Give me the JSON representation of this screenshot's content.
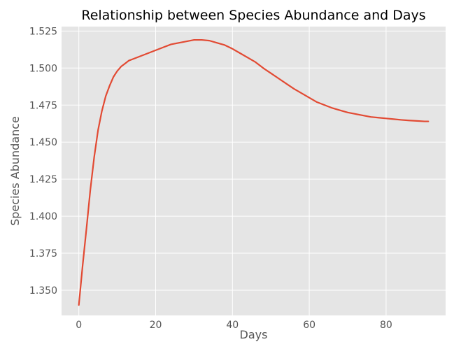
{
  "chart_data": {
    "type": "line",
    "title": "Relationship between Species Abundance and Days",
    "xlabel": "Days",
    "ylabel": "Species Abundance",
    "xlim": [
      -4.5,
      95.5
    ],
    "ylim": [
      1.333,
      1.528
    ],
    "xticks": [
      0,
      20,
      40,
      60,
      80
    ],
    "yticks": [
      1.35,
      1.375,
      1.4,
      1.425,
      1.45,
      1.475,
      1.5,
      1.525
    ],
    "ytick_labels": [
      "1.350",
      "1.375",
      "1.400",
      "1.425",
      "1.450",
      "1.475",
      "1.500",
      "1.525"
    ],
    "grid": true,
    "colors": {
      "line": "#e24a33",
      "plot_background": "#e5e5e5",
      "grid": "#ffffff",
      "text": "#555555",
      "title": "#000000"
    },
    "series": [
      {
        "x": [
          0,
          1,
          2,
          3,
          4,
          5,
          6,
          7,
          8,
          9,
          10,
          11,
          12,
          13,
          14,
          15,
          16,
          18,
          20,
          22,
          24,
          26,
          28,
          30,
          32,
          34,
          36,
          38,
          40,
          42,
          44,
          46,
          48,
          50,
          52,
          54,
          56,
          58,
          60,
          62,
          64,
          66,
          68,
          70,
          72,
          74,
          76,
          78,
          80,
          82,
          84,
          86,
          88,
          90,
          91
        ],
        "y": [
          1.34,
          1.367,
          1.392,
          1.418,
          1.44,
          1.458,
          1.471,
          1.481,
          1.488,
          1.494,
          1.498,
          1.501,
          1.503,
          1.505,
          1.506,
          1.507,
          1.508,
          1.51,
          1.512,
          1.514,
          1.516,
          1.517,
          1.518,
          1.519,
          1.519,
          1.5185,
          1.517,
          1.5155,
          1.513,
          1.51,
          1.507,
          1.504,
          1.5,
          1.4965,
          1.493,
          1.4895,
          1.486,
          1.483,
          1.48,
          1.477,
          1.475,
          1.473,
          1.4715,
          1.47,
          1.469,
          1.468,
          1.467,
          1.4665,
          1.466,
          1.4655,
          1.465,
          1.4646,
          1.4643,
          1.464,
          1.464
        ]
      }
    ]
  }
}
